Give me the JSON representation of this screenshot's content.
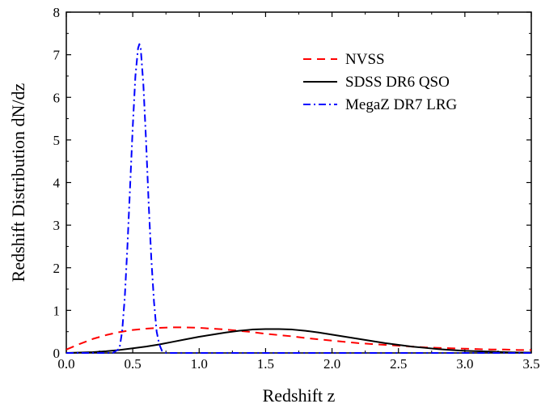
{
  "chart_data": {
    "type": "line",
    "xlabel": "Redshift z",
    "ylabel": "Redshift Distribution dN/dz",
    "xlim": [
      0.0,
      3.5
    ],
    "ylim": [
      0,
      8
    ],
    "x_ticks": [
      "0.0",
      "0.5",
      "1.0",
      "1.5",
      "2.0",
      "2.5",
      "3.0",
      "3.5"
    ],
    "y_ticks": [
      "0",
      "1",
      "2",
      "3",
      "4",
      "5",
      "6",
      "7",
      "8"
    ],
    "grid": false,
    "legend_position": "top-right",
    "series": [
      {
        "name": "NVSS",
        "color": "#ff0000",
        "line_style": "dashed",
        "x": [
          0.0,
          0.1,
          0.2,
          0.3,
          0.4,
          0.5,
          0.6,
          0.7,
          0.8,
          0.9,
          1.0,
          1.1,
          1.2,
          1.3,
          1.4,
          1.5,
          1.6,
          1.7,
          1.8,
          1.9,
          2.0,
          2.1,
          2.2,
          2.3,
          2.4,
          2.5,
          2.6,
          2.7,
          2.8,
          2.9,
          3.0,
          3.1,
          3.2,
          3.3,
          3.4,
          3.5
        ],
        "y": [
          0.08,
          0.21,
          0.33,
          0.42,
          0.49,
          0.54,
          0.57,
          0.59,
          0.6,
          0.6,
          0.59,
          0.57,
          0.55,
          0.52,
          0.49,
          0.45,
          0.42,
          0.39,
          0.35,
          0.32,
          0.29,
          0.26,
          0.23,
          0.21,
          0.19,
          0.17,
          0.15,
          0.13,
          0.12,
          0.11,
          0.1,
          0.09,
          0.08,
          0.08,
          0.07,
          0.07
        ]
      },
      {
        "name": "SDSS DR6 QSO",
        "color": "#000000",
        "line_style": "solid",
        "x": [
          0.0,
          0.1,
          0.2,
          0.3,
          0.4,
          0.5,
          0.6,
          0.7,
          0.8,
          0.9,
          1.0,
          1.1,
          1.2,
          1.3,
          1.4,
          1.5,
          1.6,
          1.7,
          1.8,
          1.9,
          2.0,
          2.1,
          2.2,
          2.3,
          2.4,
          2.5,
          2.6,
          2.7,
          2.8,
          2.9,
          3.0,
          3.1,
          3.2,
          3.3,
          3.4,
          3.5
        ],
        "y": [
          0.0,
          0.01,
          0.02,
          0.04,
          0.07,
          0.11,
          0.15,
          0.2,
          0.26,
          0.32,
          0.38,
          0.43,
          0.48,
          0.52,
          0.55,
          0.56,
          0.56,
          0.55,
          0.52,
          0.48,
          0.43,
          0.38,
          0.33,
          0.28,
          0.23,
          0.19,
          0.15,
          0.12,
          0.09,
          0.07,
          0.05,
          0.04,
          0.03,
          0.02,
          0.01,
          0.01
        ]
      },
      {
        "name": "MegaZ DR7 LRG",
        "color": "#0000ff",
        "line_style": "dash-dot",
        "x": [
          0.0,
          0.35,
          0.4,
          0.42,
          0.44,
          0.46,
          0.48,
          0.5,
          0.52,
          0.54,
          0.55,
          0.56,
          0.58,
          0.6,
          0.62,
          0.64,
          0.66,
          0.68,
          0.7,
          0.72,
          0.75,
          1.0,
          3.5
        ],
        "y": [
          0.0,
          0.0,
          0.1,
          0.5,
          1.3,
          2.5,
          3.9,
          5.3,
          6.5,
          7.15,
          7.25,
          7.15,
          6.3,
          5.0,
          3.5,
          2.2,
          1.2,
          0.5,
          0.2,
          0.05,
          0.0,
          0.0,
          0.0
        ]
      }
    ]
  }
}
